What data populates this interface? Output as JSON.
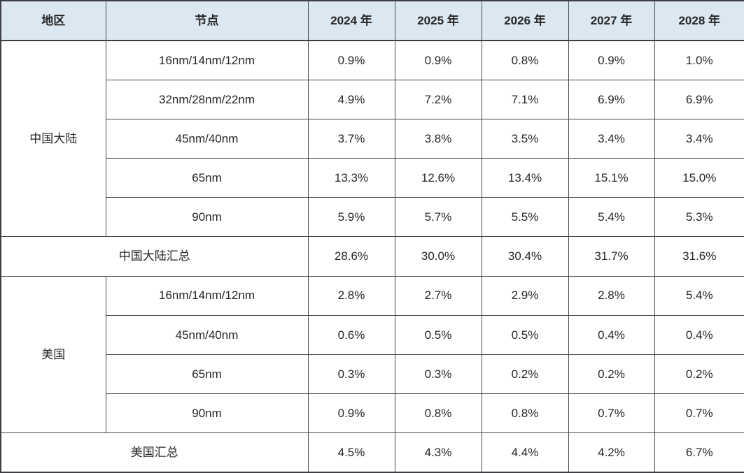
{
  "table": {
    "columns": [
      "地区",
      "节点",
      "2024 年",
      "2025 年",
      "2026 年",
      "2027 年",
      "2028 年"
    ],
    "sections": [
      {
        "region": "中国大陆",
        "rows": [
          {
            "node": "16nm/14nm/12nm",
            "values": [
              "0.9%",
              "0.9%",
              "0.8%",
              "0.9%",
              "1.0%"
            ]
          },
          {
            "node": "32nm/28nm/22nm",
            "values": [
              "4.9%",
              "7.2%",
              "7.1%",
              "6.9%",
              "6.9%"
            ]
          },
          {
            "node": "45nm/40nm",
            "values": [
              "3.7%",
              "3.8%",
              "3.5%",
              "3.4%",
              "3.4%"
            ]
          },
          {
            "node": "65nm",
            "values": [
              "13.3%",
              "12.6%",
              "13.4%",
              "15.1%",
              "15.0%"
            ]
          },
          {
            "node": "90nm",
            "values": [
              "5.9%",
              "5.7%",
              "5.5%",
              "5.4%",
              "5.3%"
            ]
          }
        ],
        "summary": {
          "label": "中国大陆汇总",
          "values": [
            "28.6%",
            "30.0%",
            "30.4%",
            "31.7%",
            "31.6%"
          ]
        }
      },
      {
        "region": "美国",
        "rows": [
          {
            "node": "16nm/14nm/12nm",
            "values": [
              "2.8%",
              "2.7%",
              "2.9%",
              "2.8%",
              "5.4%"
            ]
          },
          {
            "node": "45nm/40nm",
            "values": [
              "0.6%",
              "0.5%",
              "0.5%",
              "0.4%",
              "0.4%"
            ]
          },
          {
            "node": "65nm",
            "values": [
              "0.3%",
              "0.3%",
              "0.2%",
              "0.2%",
              "0.2%"
            ]
          },
          {
            "node": "90nm",
            "values": [
              "0.9%",
              "0.8%",
              "0.8%",
              "0.7%",
              "0.7%"
            ]
          }
        ],
        "summary": {
          "label": "美国汇总",
          "values": [
            "4.5%",
            "4.3%",
            "4.4%",
            "4.2%",
            "6.7%"
          ]
        }
      }
    ]
  },
  "chart_data": {
    "type": "table",
    "title": "",
    "columns": [
      "地区",
      "节点",
      "2024 年",
      "2025 年",
      "2026 年",
      "2027 年",
      "2028 年"
    ],
    "rows": [
      [
        "中国大陆",
        "16nm/14nm/12nm",
        "0.9%",
        "0.9%",
        "0.8%",
        "0.9%",
        "1.0%"
      ],
      [
        "中国大陆",
        "32nm/28nm/22nm",
        "4.9%",
        "7.2%",
        "7.1%",
        "6.9%",
        "6.9%"
      ],
      [
        "中国大陆",
        "45nm/40nm",
        "3.7%",
        "3.8%",
        "3.5%",
        "3.4%",
        "3.4%"
      ],
      [
        "中国大陆",
        "65nm",
        "13.3%",
        "12.6%",
        "13.4%",
        "15.1%",
        "15.0%"
      ],
      [
        "中国大陆",
        "90nm",
        "5.9%",
        "5.7%",
        "5.5%",
        "5.4%",
        "5.3%"
      ],
      [
        "中国大陆汇总",
        "",
        "28.6%",
        "30.0%",
        "30.4%",
        "31.7%",
        "31.6%"
      ],
      [
        "美国",
        "16nm/14nm/12nm",
        "2.8%",
        "2.7%",
        "2.9%",
        "2.8%",
        "5.4%"
      ],
      [
        "美国",
        "45nm/40nm",
        "0.6%",
        "0.5%",
        "0.5%",
        "0.4%",
        "0.4%"
      ],
      [
        "美国",
        "65nm",
        "0.3%",
        "0.3%",
        "0.2%",
        "0.2%",
        "0.2%"
      ],
      [
        "美国",
        "90nm",
        "0.9%",
        "0.8%",
        "0.8%",
        "0.7%",
        "0.7%"
      ],
      [
        "美国汇总",
        "",
        "4.5%",
        "4.3%",
        "4.4%",
        "4.2%",
        "6.7%"
      ]
    ]
  },
  "colors": {
    "header_bg": "#dbe7f1",
    "border": "#46484d",
    "text": "#262626"
  }
}
